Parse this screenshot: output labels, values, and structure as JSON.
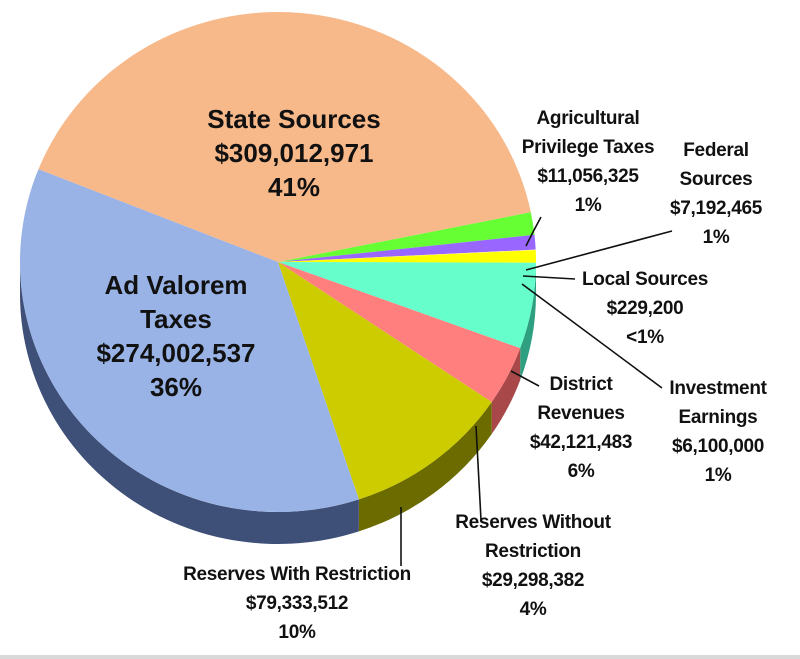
{
  "chart_data": {
    "type": "pie",
    "slices": [
      {
        "name_lines": [
          "Agricultural",
          "Privilege Taxes"
        ],
        "amount": "$11,056,325",
        "percent_label": "1%",
        "value": 11056325,
        "color": "#66ff33",
        "side": "#3faa1e"
      },
      {
        "name_lines": [
          "Federal",
          "Sources"
        ],
        "amount": "$7,192,465",
        "percent_label": "1%",
        "value": 7192465,
        "color": "#9966ff",
        "side": "#5f3fb0"
      },
      {
        "name_lines": [
          "Local Sources"
        ],
        "amount": "$229,200",
        "percent_label": "<1%",
        "value": 229200,
        "color": "#ffff99",
        "side": "#b0b060"
      },
      {
        "name_lines": [
          "Investment",
          "Earnings"
        ],
        "amount": "$6,100,000",
        "percent_label": "1%",
        "value": 6100000,
        "color": "#ffff00",
        "side": "#a8a800"
      },
      {
        "name_lines": [
          "District",
          "Revenues"
        ],
        "amount": "$42,121,483",
        "percent_label": "6%",
        "value": 42121483,
        "color": "#66ffcc",
        "side": "#2e9f80"
      },
      {
        "name_lines": [
          "Reserves Without",
          "Restriction"
        ],
        "amount": "$29,298,382",
        "percent_label": "4%",
        "value": 29298382,
        "color": "#ff7f7f",
        "side": "#a84848"
      },
      {
        "name_lines": [
          "Reserves With Restriction"
        ],
        "amount": "$79,333,512",
        "percent_label": "10%",
        "value": 79333512,
        "color": "#cccc00",
        "side": "#6b6b00"
      },
      {
        "name_lines": [
          "Ad Valorem",
          "Taxes"
        ],
        "amount": "$274,002,537",
        "percent_label": "36%",
        "value": 274002537,
        "color": "#99b3e6",
        "side": "#3e4f78"
      },
      {
        "name_lines": [
          "State Sources"
        ],
        "amount": "$309,012,971",
        "percent_label": "41%",
        "value": 309012971,
        "color": "#f7b88a",
        "side": "#b97a52"
      }
    ]
  }
}
